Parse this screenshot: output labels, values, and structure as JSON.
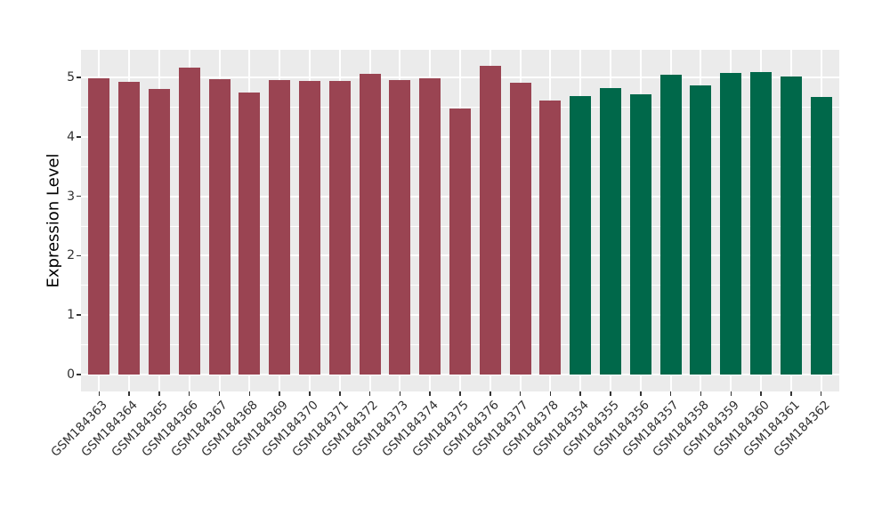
{
  "chart_data": {
    "type": "bar",
    "title": "",
    "xlabel": "",
    "ylabel": "Expression Level",
    "ylim": [
      0,
      5.46
    ],
    "yticks": [
      "0",
      "1",
      "2",
      "3",
      "4",
      "5"
    ],
    "ytick_values": [
      0,
      1,
      2,
      3,
      4,
      5
    ],
    "grid": "horizontal major+minor, vertical major per category, white on gray panel",
    "legend_position": "none",
    "categories": [
      "GSM184363",
      "GSM184364",
      "GSM184365",
      "GSM184366",
      "GSM184367",
      "GSM184368",
      "GSM184369",
      "GSM184370",
      "GSM184371",
      "GSM184372",
      "GSM184373",
      "GSM184374",
      "GSM184375",
      "GSM184376",
      "GSM184377",
      "GSM184378",
      "GSM184354",
      "GSM184355",
      "GSM184356",
      "GSM184357",
      "GSM184358",
      "GSM184359",
      "GSM184360",
      "GSM184361",
      "GSM184362"
    ],
    "values": [
      4.98,
      4.93,
      4.8,
      5.17,
      4.97,
      4.74,
      4.96,
      4.94,
      4.94,
      5.06,
      4.96,
      4.99,
      4.48,
      5.2,
      4.91,
      4.61,
      4.68,
      4.82,
      4.72,
      5.05,
      4.87,
      5.07,
      5.09,
      5.01,
      4.67
    ],
    "bar_groups": [
      "group1",
      "group1",
      "group1",
      "group1",
      "group1",
      "group1",
      "group1",
      "group1",
      "group1",
      "group1",
      "group1",
      "group1",
      "group1",
      "group1",
      "group1",
      "group1",
      "group2",
      "group2",
      "group2",
      "group2",
      "group2",
      "group2",
      "group2",
      "group2",
      "group2"
    ],
    "colors": {
      "group1": "#9A4452",
      "group2": "#00684A",
      "panel_background": "#EBEBEB",
      "gridline": "#FFFFFF",
      "figure_background": "#FFFFFF",
      "axis_text": "#303030",
      "tick_mark": "#333333"
    }
  }
}
